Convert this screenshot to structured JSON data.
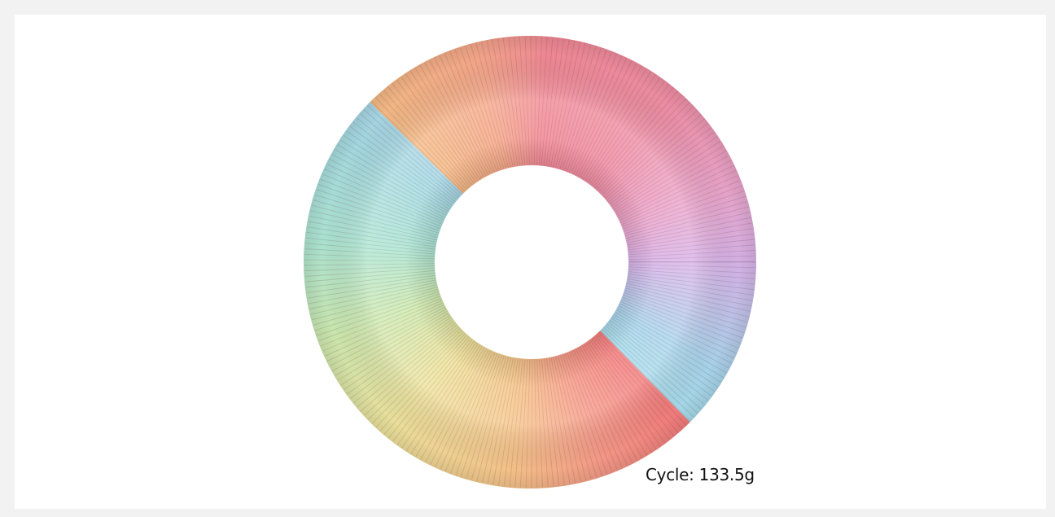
{
  "caption": "Cycle: 133.5g"
}
